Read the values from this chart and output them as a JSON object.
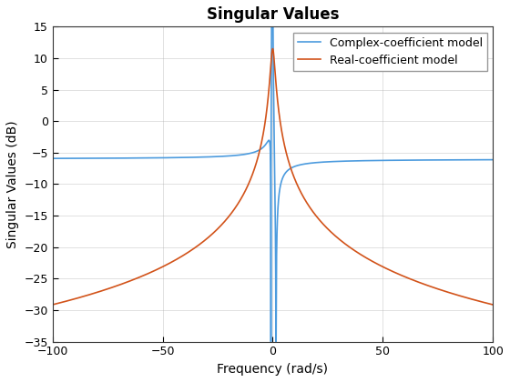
{
  "title": "Singular Values",
  "xlabel": "Frequency (rad/s)",
  "ylabel": "Singular Values (dB)",
  "xlim": [
    -100,
    100
  ],
  "ylim": [
    -35,
    15
  ],
  "yticks": [
    -35,
    -30,
    -25,
    -20,
    -15,
    -10,
    -5,
    0,
    5,
    10,
    15
  ],
  "xticks": [
    -100,
    -50,
    0,
    50,
    100
  ],
  "legend": [
    "Complex-coefficient model",
    "Real-coefficient model"
  ],
  "complex_color": "#4C9BDE",
  "real_color": "#D2531A",
  "linewidth": 1.2,
  "bg_color": "#FFFFFF",
  "grid_color": "#AAAAAA"
}
